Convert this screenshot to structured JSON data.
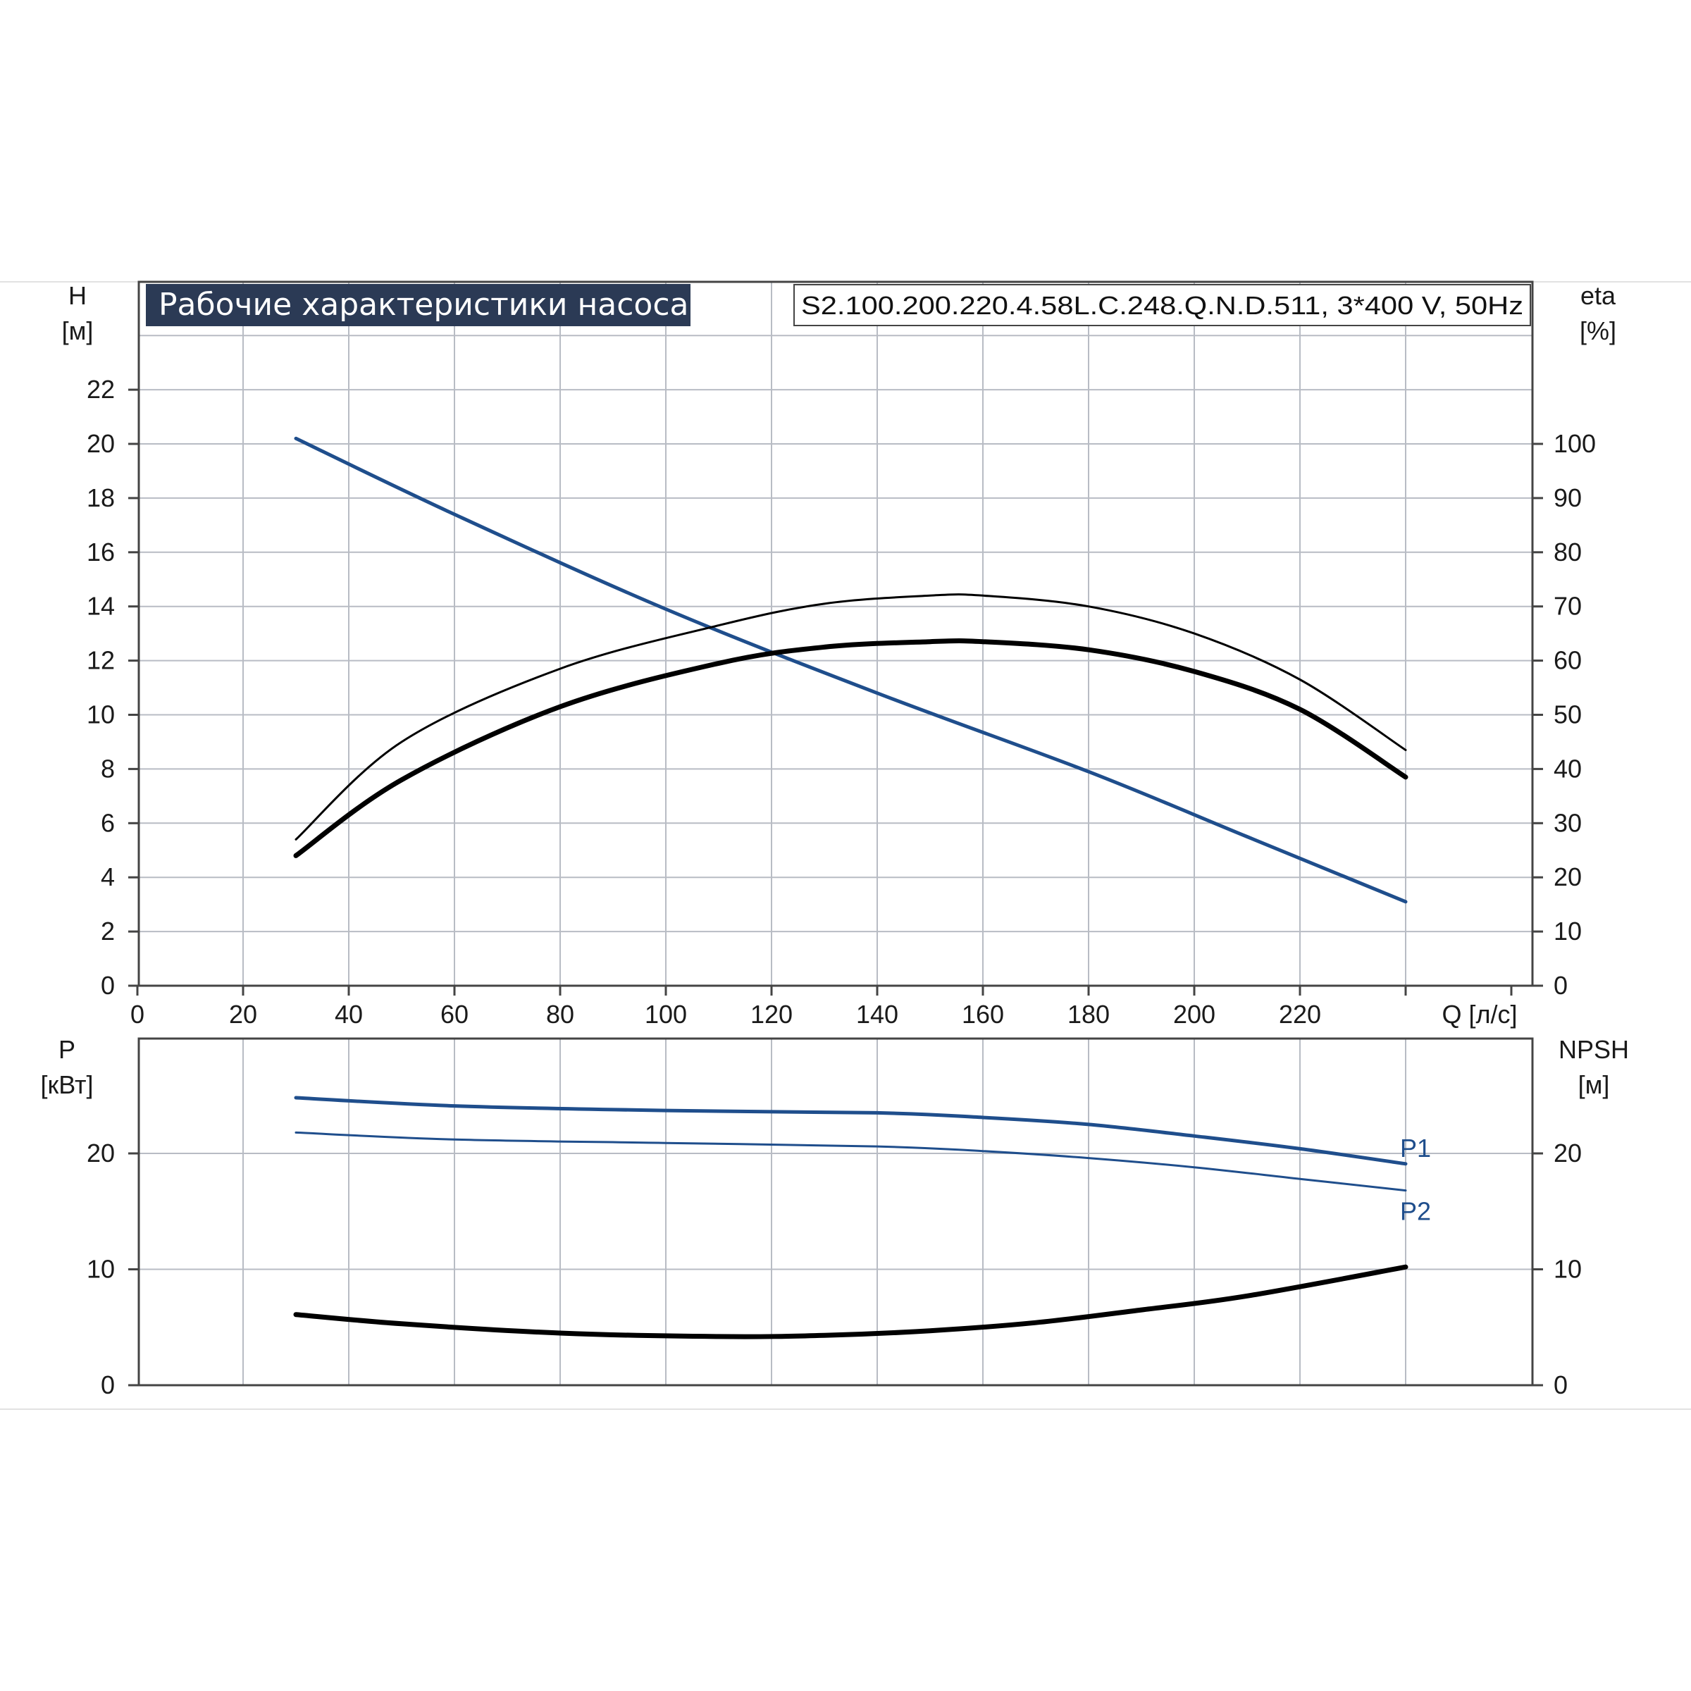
{
  "title": "Рабочие характеристики насоса",
  "model": "S2.100.200.220.4.58L.C.248.Q.N.D.511, 3*400 V, 50Hz",
  "colors": {
    "blue": "#1f4e8c",
    "black": "#000000",
    "grid": "#b8bcc4",
    "title_bg": "#2b3a55"
  },
  "chart_data": [
    {
      "type": "line",
      "panel": "performance",
      "xlabel": "Q [л/с]",
      "ylabel_left": "H\n[м]",
      "ylabel_right": "eta\n[%]",
      "xlim": [
        0,
        240
      ],
      "ylim_left": [
        0,
        24
      ],
      "ylim_right": [
        0,
        120
      ],
      "x_ticks": [
        0,
        20,
        40,
        60,
        80,
        100,
        120,
        140,
        160,
        180,
        200,
        220
      ],
      "y_left_ticks": [
        0,
        2,
        4,
        6,
        8,
        10,
        12,
        14,
        16,
        18,
        20,
        22
      ],
      "y_right_ticks": [
        0,
        10,
        20,
        30,
        40,
        50,
        60,
        70,
        80,
        90,
        100
      ],
      "grid": true,
      "series": [
        {
          "axis": "left",
          "color": "#1f4e8c",
          "width": 5,
          "x": [
            30,
            60,
            100,
            140,
            180,
            210,
            240
          ],
          "y": [
            20.2,
            17.4,
            13.9,
            10.8,
            7.9,
            5.5,
            3.1
          ]
        },
        {
          "axis": "right",
          "color": "#000000",
          "width": 3,
          "x": [
            30,
            50,
            80,
            110,
            130,
            150,
            160,
            180,
            200,
            220,
            240
          ],
          "y": [
            27,
            45,
            58.5,
            66.5,
            70.5,
            72,
            72,
            70,
            65,
            56.5,
            43.5
          ]
        },
        {
          "axis": "right",
          "color": "#000000",
          "width": 7,
          "x": [
            30,
            50,
            80,
            110,
            130,
            150,
            160,
            180,
            200,
            220,
            240
          ],
          "y": [
            24,
            38,
            51.5,
            59.5,
            62.5,
            63.5,
            63.5,
            62,
            58,
            51,
            38.5
          ]
        }
      ]
    },
    {
      "type": "line",
      "panel": "power",
      "ylabel_left": "P\n[кВт]",
      "ylabel_right": "NPSH\n[м]",
      "xlim": [
        0,
        240
      ],
      "ylim_left": [
        0,
        30
      ],
      "ylim_right": [
        0,
        30
      ],
      "y_left_ticks": [
        0,
        10,
        20
      ],
      "y_right_ticks": [
        0,
        10,
        20
      ],
      "grid": true,
      "series": [
        {
          "name": "P1",
          "axis": "left",
          "color": "#1f4e8c",
          "width": 5,
          "x": [
            30,
            60,
            100,
            140,
            160,
            180,
            200,
            220,
            240
          ],
          "y": [
            24.8,
            24.1,
            23.7,
            23.5,
            23.1,
            22.5,
            21.5,
            20.4,
            19.1
          ]
        },
        {
          "name": "P2",
          "axis": "left",
          "color": "#1f4e8c",
          "width": 3,
          "x": [
            30,
            60,
            100,
            140,
            160,
            180,
            200,
            220,
            240
          ],
          "y": [
            21.8,
            21.2,
            20.9,
            20.6,
            20.2,
            19.6,
            18.8,
            17.8,
            16.8
          ]
        },
        {
          "axis": "right",
          "color": "#000000",
          "width": 7,
          "x": [
            30,
            50,
            80,
            110,
            130,
            150,
            170,
            190,
            210,
            240
          ],
          "y": [
            6.1,
            5.3,
            4.5,
            4.2,
            4.3,
            4.7,
            5.4,
            6.5,
            7.7,
            10.2
          ]
        }
      ]
    }
  ]
}
